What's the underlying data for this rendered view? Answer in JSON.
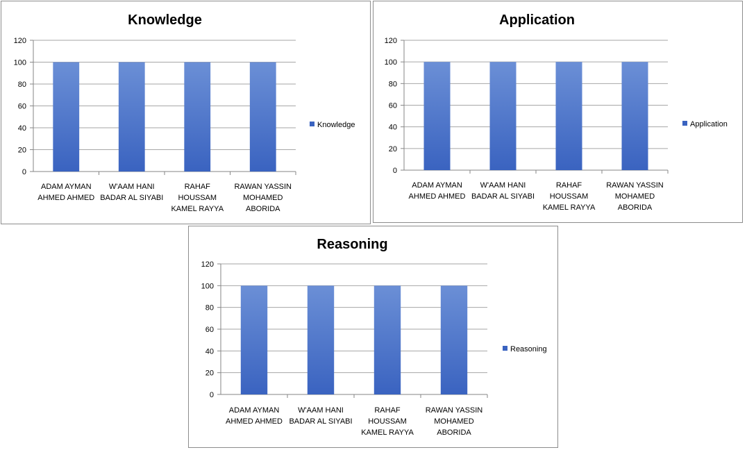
{
  "chart_data": [
    {
      "type": "bar",
      "title": "Knowledge",
      "categories": [
        [
          "ADAM AYMAN",
          "AHMED AHMED"
        ],
        [
          "W'AAM HANI",
          "BADAR AL SIYABI"
        ],
        [
          "RAHAF",
          "HOUSSAM",
          "KAMEL RAYYA"
        ],
        [
          "RAWAN YASSIN",
          "MOHAMED",
          "ABORIDA"
        ]
      ],
      "series": [
        {
          "name": "Knowledge",
          "values": [
            100,
            100,
            100,
            100
          ]
        }
      ],
      "ylim": [
        0,
        120
      ],
      "yticks": [
        "0",
        "20",
        "40",
        "60",
        "80",
        "100",
        "120"
      ],
      "grid": true,
      "legend": "right",
      "bar_color_top": "#6b8fd6",
      "bar_color_bottom": "#3a63c0"
    },
    {
      "type": "bar",
      "title": "Application",
      "categories": [
        [
          "ADAM AYMAN",
          "AHMED AHMED"
        ],
        [
          "W'AAM HANI",
          "BADAR AL SIYABI"
        ],
        [
          "RAHAF",
          "HOUSSAM",
          "KAMEL RAYYA"
        ],
        [
          "RAWAN YASSIN",
          "MOHAMED",
          "ABORIDA"
        ]
      ],
      "series": [
        {
          "name": "Application",
          "values": [
            100,
            100,
            100,
            100
          ]
        }
      ],
      "ylim": [
        0,
        120
      ],
      "yticks": [
        "0",
        "20",
        "40",
        "60",
        "80",
        "100",
        "120"
      ],
      "grid": true,
      "legend": "right",
      "bar_color_top": "#6b8fd6",
      "bar_color_bottom": "#3a63c0"
    },
    {
      "type": "bar",
      "title": "Reasoning",
      "categories": [
        [
          "ADAM AYMAN",
          "AHMED AHMED"
        ],
        [
          "W'AAM HANI",
          "BADAR AL SIYABI"
        ],
        [
          "RAHAF",
          "HOUSSAM",
          "KAMEL RAYYA"
        ],
        [
          "RAWAN YASSIN",
          "MOHAMED",
          "ABORIDA"
        ]
      ],
      "series": [
        {
          "name": "Reasoning",
          "values": [
            100,
            100,
            100,
            100
          ]
        }
      ],
      "ylim": [
        0,
        120
      ],
      "yticks": [
        "0",
        "20",
        "40",
        "60",
        "80",
        "100",
        "120"
      ],
      "grid": true,
      "legend": "right",
      "bar_color_top": "#6b8fd6",
      "bar_color_bottom": "#3a63c0"
    }
  ]
}
